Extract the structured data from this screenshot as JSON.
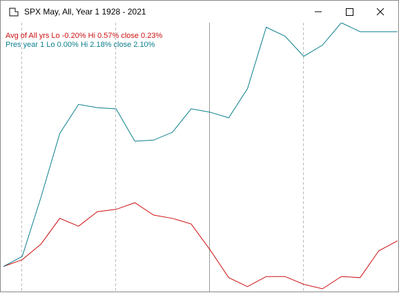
{
  "window": {
    "title": "SPX May,  All,  Year 1   1928 -  2021"
  },
  "chart_data": {
    "type": "line",
    "series": [
      {
        "name": "Avg of All yrs  Lo -0.20%  Hi 0.57%  close 0.23%",
        "color": "#cc1010",
        "values": [
          0,
          0.06,
          0.2,
          0.43,
          0.36,
          0.49,
          0.51,
          0.57,
          0.46,
          0.43,
          0.38,
          0.15,
          -0.1,
          -0.18,
          -0.09,
          -0.09,
          -0.16,
          -0.2,
          -0.09,
          -0.1,
          0.14,
          0.23
        ]
      },
      {
        "name": "Pres year 1  Lo 0.00%  Hi 2.18%  close 2.10%",
        "color": "#0a7e8c",
        "values": [
          0,
          0.09,
          0.62,
          1.19,
          1.45,
          1.42,
          1.41,
          1.12,
          1.13,
          1.2,
          1.41,
          1.38,
          1.33,
          1.59,
          2.14,
          2.06,
          1.88,
          1.98,
          2.18,
          2.1,
          2.1,
          2.1
        ]
      }
    ]
  }
}
